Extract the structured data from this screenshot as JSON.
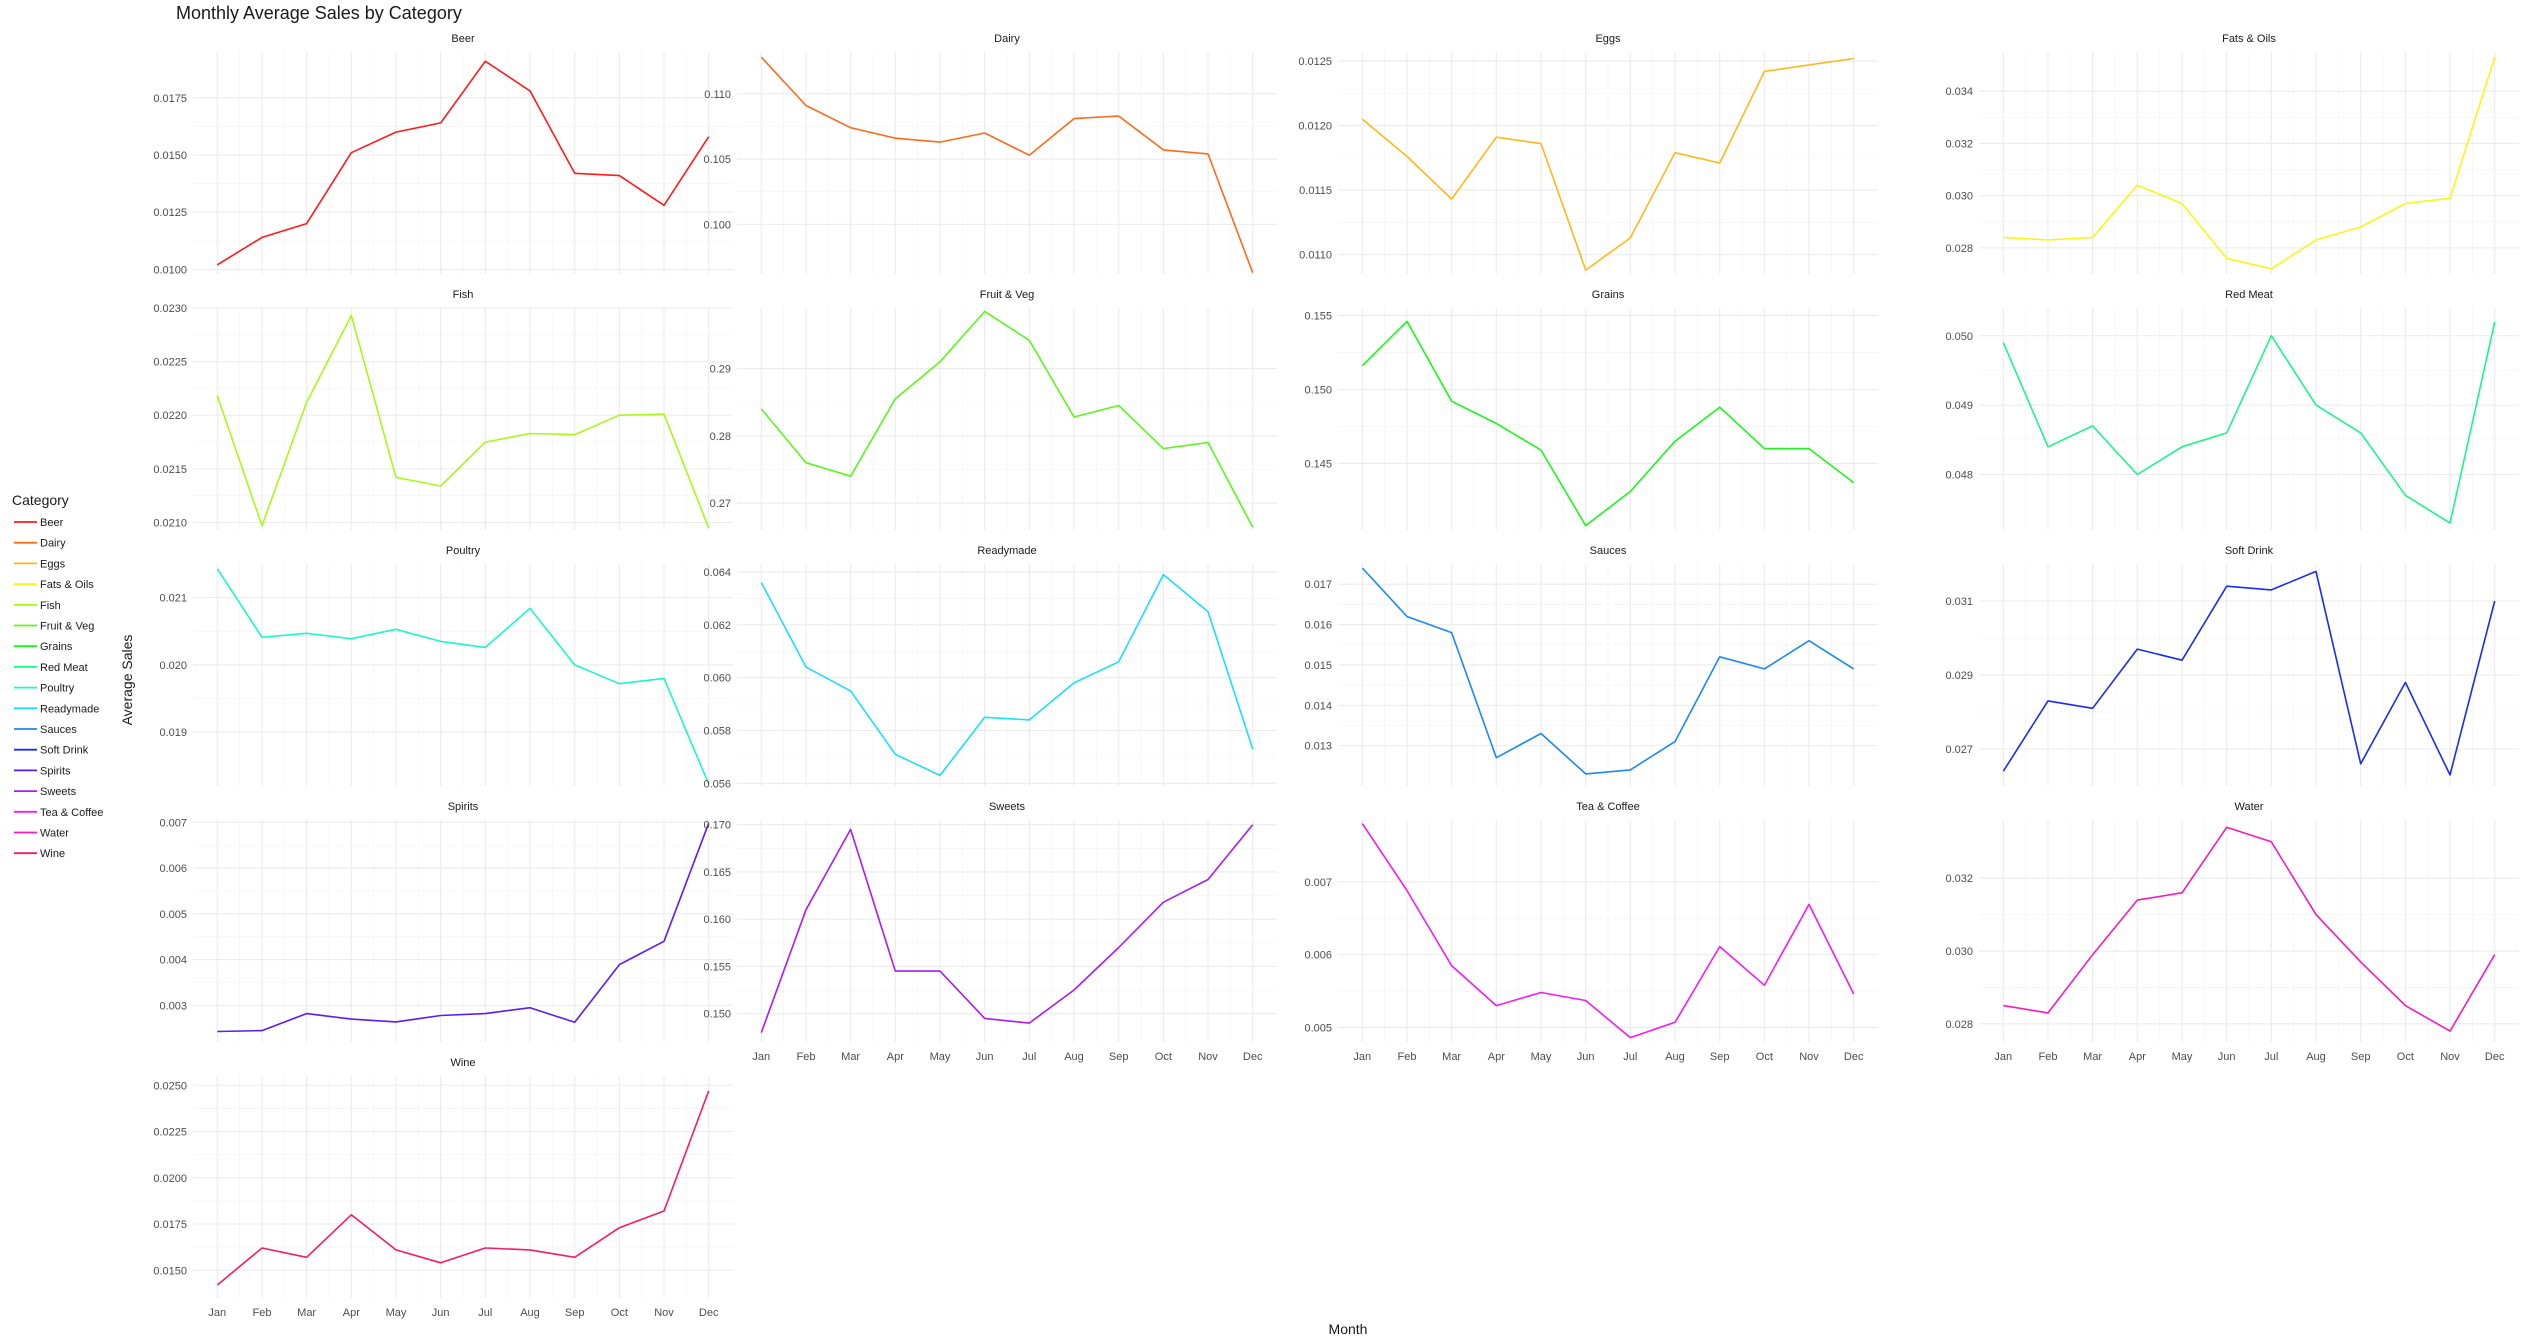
{
  "chart_data": {
    "type": "line",
    "title": "Monthly Average Sales by Category",
    "xlabel": "Month",
    "ylabel": "Average Sales",
    "categories": [
      "Jan",
      "Feb",
      "Mar",
      "Apr",
      "May",
      "Jun",
      "Jul",
      "Aug",
      "Sep",
      "Oct",
      "Nov",
      "Dec"
    ],
    "grid": true,
    "legend": {
      "title": "Category",
      "position": "left"
    },
    "facet_rows": 5,
    "facet_cols": 4,
    "series": [
      {
        "name": "Beer",
        "color": "#ff1a1a",
        "values": [
          0.0102,
          0.0114,
          0.012,
          0.0151,
          0.016,
          0.0164,
          0.0191,
          0.0178,
          0.0142,
          0.0141,
          0.0128,
          0.0158
        ],
        "ylim": [
          0.0098,
          0.0195
        ],
        "yticks": [
          0.01,
          0.0125,
          0.015,
          0.0175
        ],
        "tick_labels": [
          "0.0100",
          "0.0125",
          "0.0150",
          "0.0175"
        ]
      },
      {
        "name": "Dairy",
        "color": "#ff6a1a",
        "values": [
          0.1128,
          0.1091,
          0.1074,
          0.1066,
          0.1063,
          0.107,
          0.1053,
          0.1081,
          0.1083,
          0.1057,
          0.1054,
          0.0963
        ],
        "ylim": [
          0.0962,
          0.1132
        ],
        "yticks": [
          0.1,
          0.105,
          0.11
        ],
        "tick_labels": [
          "0.100",
          "0.105",
          "0.110"
        ]
      },
      {
        "name": "Eggs",
        "color": "#ffb81a",
        "values": [
          0.01205,
          0.01176,
          0.01143,
          0.01191,
          0.01186,
          0.01088,
          0.01113,
          0.01179,
          0.01171,
          0.01242,
          0.01247,
          0.01252
        ],
        "ylim": [
          0.01085,
          0.01257
        ],
        "yticks": [
          0.011,
          0.0115,
          0.012,
          0.0125
        ],
        "tick_labels": [
          "0.0110",
          "0.0115",
          "0.0120",
          "0.0125"
        ]
      },
      {
        "name": "Fats & Oils",
        "color": "#f7f71a",
        "values": [
          0.0284,
          0.0283,
          0.0284,
          0.0304,
          0.0297,
          0.0276,
          0.0272,
          0.0283,
          0.0288,
          0.0297,
          0.0299,
          0.0353
        ],
        "ylim": [
          0.027,
          0.0355
        ],
        "yticks": [
          0.028,
          0.03,
          0.032,
          0.034
        ],
        "tick_labels": [
          "0.028",
          "0.030",
          "0.032",
          "0.034"
        ]
      },
      {
        "name": "Fish",
        "color": "#aaf71a",
        "values": [
          0.02218,
          0.02097,
          0.02212,
          0.02293,
          0.02142,
          0.02134,
          0.02175,
          0.02183,
          0.02182,
          0.022,
          0.02201,
          0.02095
        ],
        "ylim": [
          0.02093,
          0.023
        ],
        "yticks": [
          0.021,
          0.0215,
          0.022,
          0.0225,
          0.023
        ],
        "tick_labels": [
          "0.0210",
          "0.0215",
          "0.0220",
          "0.0225",
          "0.0230"
        ]
      },
      {
        "name": "Fruit & Veg",
        "color": "#5cf71a",
        "values": [
          0.284,
          0.276,
          0.274,
          0.2855,
          0.291,
          0.2985,
          0.2942,
          0.2828,
          0.2845,
          0.2781,
          0.279,
          0.2664
        ],
        "ylim": [
          0.266,
          0.299
        ],
        "yticks": [
          0.27,
          0.28,
          0.29
        ],
        "tick_labels": [
          "0.27",
          "0.28",
          "0.29"
        ]
      },
      {
        "name": "Grains",
        "color": "#1af71a",
        "values": [
          0.1516,
          0.1546,
          0.1492,
          0.1477,
          0.1459,
          0.1408,
          0.1431,
          0.1465,
          0.1488,
          0.146,
          0.146,
          0.1437
        ],
        "ylim": [
          0.1405,
          0.1555
        ],
        "yticks": [
          0.145,
          0.15,
          0.155
        ],
        "tick_labels": [
          "0.145",
          "0.150",
          "0.155"
        ]
      },
      {
        "name": "Red Meat",
        "color": "#1af788",
        "values": [
          0.0499,
          0.0484,
          0.0487,
          0.048,
          0.0484,
          0.0486,
          0.05,
          0.049,
          0.0486,
          0.0477,
          0.0473,
          0.0502
        ],
        "ylim": [
          0.0472,
          0.0504
        ],
        "yticks": [
          0.048,
          0.049,
          0.05
        ],
        "tick_labels": [
          "0.048",
          "0.049",
          "0.050"
        ]
      },
      {
        "name": "Poultry",
        "color": "#1af7c8",
        "values": [
          0.02143,
          0.02041,
          0.02047,
          0.02039,
          0.02053,
          0.02035,
          0.02026,
          0.02084,
          0.02,
          0.01972,
          0.0198,
          0.01823
        ],
        "ylim": [
          0.0182,
          0.0215
        ],
        "yticks": [
          0.019,
          0.02,
          0.021
        ],
        "tick_labels": [
          "0.019",
          "0.020",
          "0.021"
        ]
      },
      {
        "name": "Readymade",
        "color": "#1ae0f7",
        "values": [
          0.0636,
          0.0604,
          0.0595,
          0.0571,
          0.0563,
          0.0585,
          0.0584,
          0.0598,
          0.0606,
          0.0639,
          0.0625,
          0.0573
        ],
        "ylim": [
          0.0559,
          0.0643
        ],
        "yticks": [
          0.056,
          0.058,
          0.06,
          0.062,
          0.064
        ],
        "tick_labels": [
          "0.056",
          "0.058",
          "0.060",
          "0.062",
          "0.064"
        ]
      },
      {
        "name": "Sauces",
        "color": "#1a88f7",
        "values": [
          0.0174,
          0.0162,
          0.0158,
          0.0127,
          0.0133,
          0.0123,
          0.0124,
          0.0131,
          0.0152,
          0.0149,
          0.0156,
          0.0149
        ],
        "ylim": [
          0.012,
          0.0175
        ],
        "yticks": [
          0.013,
          0.014,
          0.015,
          0.016,
          0.017
        ],
        "tick_labels": [
          "0.013",
          "0.014",
          "0.015",
          "0.016",
          "0.017"
        ]
      },
      {
        "name": "Soft Drink",
        "color": "#1a2af7",
        "values": [
          0.0264,
          0.0283,
          0.0281,
          0.0297,
          0.0294,
          0.0314,
          0.0313,
          0.0318,
          0.0266,
          0.0288,
          0.0263,
          0.031
        ],
        "ylim": [
          0.026,
          0.032
        ],
        "yticks": [
          0.027,
          0.029,
          0.031
        ],
        "tick_labels": [
          "0.027",
          "0.029",
          "0.031"
        ]
      },
      {
        "name": "Spirits",
        "color": "#5a1af7",
        "values": [
          0.00243,
          0.00245,
          0.00282,
          0.0027,
          0.00264,
          0.00278,
          0.00282,
          0.00295,
          0.00263,
          0.00389,
          0.0044,
          0.00698
        ],
        "ylim": [
          0.0022,
          0.00705
        ],
        "yticks": [
          0.003,
          0.004,
          0.005,
          0.006,
          0.007
        ],
        "tick_labels": [
          "0.003",
          "0.004",
          "0.005",
          "0.006",
          "0.007"
        ]
      },
      {
        "name": "Sweets",
        "color": "#aa1af7",
        "values": [
          0.148,
          0.161,
          0.1695,
          0.1545,
          0.1545,
          0.1495,
          0.149,
          0.1525,
          0.157,
          0.1618,
          0.1642,
          0.17
        ],
        "ylim": [
          0.147,
          0.1705
        ],
        "yticks": [
          0.15,
          0.155,
          0.16,
          0.165,
          0.17
        ],
        "tick_labels": [
          "0.150",
          "0.155",
          "0.160",
          "0.165",
          "0.170"
        ]
      },
      {
        "name": "Tea & Coffee",
        "color": "#f71af0",
        "values": [
          0.0078,
          0.00688,
          0.00585,
          0.0053,
          0.00548,
          0.00537,
          0.00486,
          0.00507,
          0.00611,
          0.00558,
          0.00669,
          0.00546
        ],
        "ylim": [
          0.0048,
          0.00785
        ],
        "yticks": [
          0.005,
          0.006,
          0.007
        ],
        "tick_labels": [
          "0.005",
          "0.006",
          "0.007"
        ]
      },
      {
        "name": "Water",
        "color": "#f71ab8",
        "values": [
          0.0285,
          0.0283,
          0.0299,
          0.0314,
          0.0316,
          0.0334,
          0.033,
          0.031,
          0.0297,
          0.0285,
          0.0278,
          0.0299
        ],
        "ylim": [
          0.0275,
          0.0336
        ],
        "yticks": [
          0.028,
          0.03,
          0.032
        ],
        "tick_labels": [
          "0.028",
          "0.030",
          "0.032"
        ]
      },
      {
        "name": "Wine",
        "color": "#f71a6a",
        "values": [
          0.0142,
          0.0162,
          0.0157,
          0.018,
          0.0161,
          0.0154,
          0.0162,
          0.0161,
          0.0157,
          0.0173,
          0.0182,
          0.0247
        ],
        "ylim": [
          0.0135,
          0.0255
        ],
        "yticks": [
          0.015,
          0.0175,
          0.02,
          0.0225,
          0.025
        ],
        "tick_labels": [
          "0.0150",
          "0.0175",
          "0.0200",
          "0.0225",
          "0.0250"
        ]
      }
    ]
  }
}
